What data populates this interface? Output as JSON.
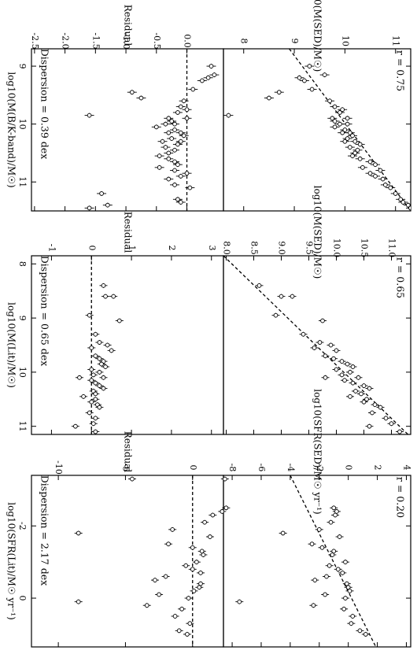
{
  "chart_data": [
    {
      "type": "scatter",
      "panel": "top",
      "x_axis_label": "log10(M(B/K-band)/M☉)",
      "y_axis_label": "log10(M(SED)/M☉)",
      "residual_axis_label": "Residual",
      "annotation": "r = 0.75",
      "residual_annotation": "Dispersion = 0.39 dex",
      "xlim": [
        8.7,
        11.5
      ],
      "ylim": [
        7.6,
        11.3
      ],
      "residual_lim": [
        -2.55,
        0.6
      ],
      "x_ticks": [
        "9",
        "10",
        "11"
      ],
      "y_ticks": [
        "8",
        "9",
        "10",
        "11"
      ],
      "residual_ticks": [
        "-2.5",
        "-2.0",
        "-1.5",
        "-1.0",
        "-0.5",
        "0.0"
      ],
      "fit_line": {
        "x": [
          8.7,
          11.5
        ],
        "y": [
          8.9,
          11.3
        ]
      },
      "residual_zero": 0,
      "x": [
        9.0,
        9.15,
        9.2,
        9.25,
        9.4,
        9.45,
        9.55,
        9.6,
        9.7,
        9.75,
        9.8,
        9.85,
        9.9,
        9.9,
        9.95,
        10.0,
        10.0,
        10.05,
        10.1,
        10.15,
        10.15,
        10.2,
        10.25,
        10.3,
        10.3,
        10.35,
        10.4,
        10.45,
        10.5,
        10.55,
        10.6,
        10.65,
        10.7,
        10.75,
        10.8,
        10.85,
        10.9,
        10.95,
        11.05,
        11.1,
        11.2,
        11.3,
        11.35,
        11.4,
        11.45
      ],
      "y": [
        9.3,
        9.6,
        9.1,
        9.2,
        9.35,
        8.7,
        8.5,
        9.7,
        9.8,
        9.95,
        9.9,
        7.7,
        10.05,
        9.75,
        9.8,
        10.05,
        9.9,
        9.8,
        10.0,
        10.1,
        9.95,
        10.15,
        10.05,
        10.2,
        10.0,
        10.3,
        10.1,
        10.25,
        10.2,
        10.15,
        10.3,
        10.5,
        10.6,
        10.35,
        10.7,
        10.5,
        10.6,
        10.75,
        10.8,
        10.9,
        11.0,
        11.1,
        11.15,
        11.25,
        11.3
      ],
      "residual": [
        0.4,
        0.45,
        0.35,
        0.25,
        0.1,
        -0.9,
        -0.75,
        -0.05,
        -0.1,
        0.0,
        -0.15,
        -1.6,
        0.0,
        -0.3,
        -0.25,
        -0.2,
        -0.35,
        -0.5,
        -0.2,
        -0.1,
        -0.3,
        -0.05,
        -0.25,
        -0.1,
        -0.4,
        -0.15,
        -0.35,
        -0.2,
        -0.3,
        -0.45,
        -0.3,
        -0.2,
        -0.15,
        -0.45,
        -0.2,
        0.0,
        -0.1,
        -0.3,
        -0.2,
        0.05,
        -1.4,
        -0.15,
        -0.1,
        -1.3,
        -1.6
      ]
    },
    {
      "type": "scatter",
      "panel": "middle",
      "x_axis_label": "log10(M(Lit)/M☉)",
      "y_axis_label": "log10(M(SED)/M☉)",
      "residual_axis_label": "Residual",
      "annotation": "r = 0.65",
      "residual_annotation": "Dispersion = 0.65 dex",
      "xlim": [
        7.85,
        11.15
      ],
      "ylim": [
        7.95,
        11.35
      ],
      "residual_lim": [
        -1.5,
        3.3
      ],
      "x_ticks": [
        "8",
        "9",
        "10",
        "11"
      ],
      "y_ticks": [
        "8.0",
        "8.5",
        "9.0",
        "9.5",
        "10.0",
        "10.5",
        "11.0"
      ],
      "residual_ticks": [
        "-1",
        "0",
        "1",
        "2",
        "3"
      ],
      "fit_line": {
        "x": [
          7.85,
          11.15
        ],
        "y": [
          7.95,
          11.3
        ]
      },
      "residual_zero": 0,
      "x": [
        8.4,
        8.6,
        8.6,
        8.95,
        9.05,
        9.3,
        9.45,
        9.5,
        9.55,
        9.6,
        9.7,
        9.75,
        9.8,
        9.85,
        9.9,
        9.95,
        10.0,
        10.05,
        10.1,
        10.1,
        10.15,
        10.2,
        10.25,
        10.3,
        10.35,
        10.4,
        10.45,
        10.5,
        10.55,
        10.6,
        10.65,
        10.75,
        10.85,
        10.95,
        11.0,
        11.1
      ],
      "y": [
        8.6,
        9.0,
        9.2,
        8.9,
        9.75,
        9.4,
        9.7,
        9.9,
        9.6,
        10.0,
        9.8,
        9.95,
        10.1,
        10.2,
        10.3,
        10.0,
        10.25,
        10.1,
        10.4,
        9.8,
        10.15,
        10.3,
        10.5,
        10.6,
        10.35,
        10.45,
        10.25,
        10.55,
        10.5,
        10.7,
        10.8,
        10.65,
        10.9,
        11.0,
        10.6,
        11.15
      ],
      "residual": [
        0.3,
        0.35,
        0.55,
        -0.05,
        0.7,
        0.1,
        0.2,
        0.4,
        0.0,
        0.5,
        0.1,
        0.2,
        0.3,
        0.25,
        0.35,
        0.0,
        0.2,
        0.05,
        0.3,
        -0.3,
        0.0,
        0.1,
        0.2,
        0.3,
        0.05,
        0.1,
        -0.2,
        0.1,
        0.0,
        0.15,
        0.2,
        -0.05,
        0.1,
        0.05,
        -0.4,
        0.1
      ]
    },
    {
      "type": "scatter",
      "panel": "bottom",
      "x_axis_label": "log10(SFR(Lit)/M☉ yr⁻¹)",
      "y_axis_label": "log10(SFR(SED)/M☉ yr⁻¹)",
      "residual_axis_label": "Residual",
      "annotation": "r = 0.20",
      "residual_annotation": "Dispersion = 2.17 dex",
      "xlim": [
        -3.4,
        1.35
      ],
      "ylim": [
        -8.6,
        4.3
      ],
      "residual_lim": [
        -12,
        2.3
      ],
      "x_ticks": [
        "-2",
        "0"
      ],
      "y_ticks": [
        "-8",
        "-6",
        "-4",
        "-2",
        "0",
        "2",
        "4"
      ],
      "residual_ticks": [
        "-10",
        "-5",
        "0"
      ],
      "fit_line": {
        "x": [
          -3.4,
          1.35
        ],
        "y": [
          -4.0,
          1.9
        ]
      },
      "residual_zero": 0,
      "x": [
        -3.3,
        -2.5,
        -2.4,
        -2.3,
        -2.1,
        -1.9,
        -1.8,
        -1.7,
        -1.5,
        -1.4,
        -1.3,
        -1.2,
        -1.0,
        -0.9,
        -0.8,
        -0.7,
        -0.6,
        -0.5,
        -0.4,
        -0.3,
        -0.2,
        -0.1,
        0.0,
        0.1,
        0.2,
        0.3,
        0.5,
        0.7,
        0.9,
        1.0
      ],
      "y": [
        -8.5,
        -1.0,
        -0.8,
        -0.9,
        -1.2,
        -2.0,
        -4.5,
        -0.6,
        -2.5,
        -1.8,
        -1.0,
        -1.1,
        -0.2,
        -1.3,
        -0.7,
        -0.4,
        -1.5,
        -2.3,
        -0.1,
        0.0,
        0.1,
        -1.6,
        -0.2,
        -7.5,
        -2.4,
        -0.3,
        0.3,
        0.2,
        0.8,
        1.2
      ],
      "residual": [
        -4.5,
        2.5,
        2.2,
        1.5,
        0.9,
        -1.5,
        -8.5,
        1.3,
        -1.8,
        0.0,
        0.7,
        0.8,
        0.3,
        -0.5,
        0.0,
        0.6,
        -2.0,
        -2.8,
        0.6,
        0.5,
        0.1,
        -2.5,
        -0.3,
        -8.5,
        -3.4,
        -0.8,
        -1.3,
        -0.2,
        -1.0,
        -0.4
      ]
    }
  ]
}
